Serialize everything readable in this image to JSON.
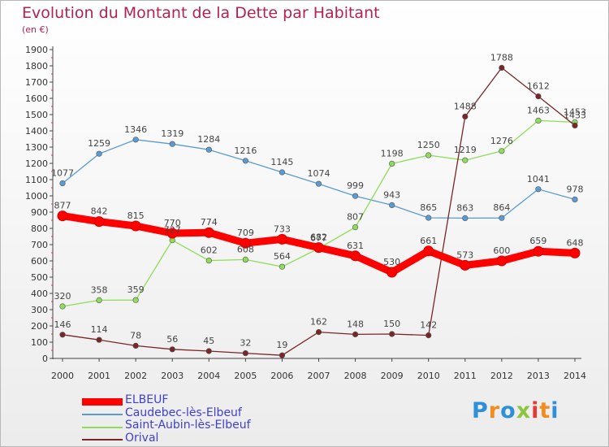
{
  "chart_data": {
    "type": "line",
    "title": "Evolution du Montant de la Dette par Habitant",
    "ylabel": "(en €)",
    "xlabel": "",
    "x": [
      "2000",
      "2001",
      "2002",
      "2003",
      "2004",
      "2005",
      "2006",
      "2007",
      "2008",
      "2009",
      "2010",
      "2011",
      "2012",
      "2013",
      "2014"
    ],
    "ylim": [
      0,
      1900
    ],
    "yticks": [
      0,
      100,
      200,
      300,
      400,
      500,
      600,
      700,
      800,
      900,
      1000,
      1100,
      1200,
      1300,
      1400,
      1500,
      1600,
      1700,
      1800,
      1900
    ],
    "grid": false,
    "legend_position": "bottom-left",
    "series": [
      {
        "name": "ELBEUF",
        "color": "#ff0000",
        "values": [
          877,
          842,
          815,
          770,
          774,
          709,
          733,
          682,
          631,
          530,
          661,
          573,
          600,
          659,
          648
        ]
      },
      {
        "name": "Caudebec-lès-Elbeuf",
        "color": "#5a9bd4",
        "values": [
          1077,
          1259,
          1346,
          1319,
          1284,
          1216,
          1145,
          1074,
          999,
          943,
          865,
          863,
          864,
          1041,
          978
        ]
      },
      {
        "name": "Saint-Aubin-lès-Elbeuf",
        "color": "#8fdc5a",
        "values": [
          320,
          358,
          359,
          727,
          602,
          608,
          564,
          677,
          807,
          1198,
          1250,
          1219,
          1276,
          1463,
          1453
        ]
      },
      {
        "name": "Orival",
        "color": "#7a2626",
        "values": [
          146,
          114,
          78,
          56,
          45,
          32,
          19,
          162,
          148,
          150,
          142,
          1488,
          1788,
          1612,
          1433
        ]
      }
    ]
  },
  "logo": {
    "text": "Proxiti",
    "colors": [
      "#2f8fd8",
      "#f28c1c",
      "#2f8fd8",
      "#8cc63f",
      "#e53935",
      "#f28c1c",
      "#2f8fd8"
    ]
  }
}
